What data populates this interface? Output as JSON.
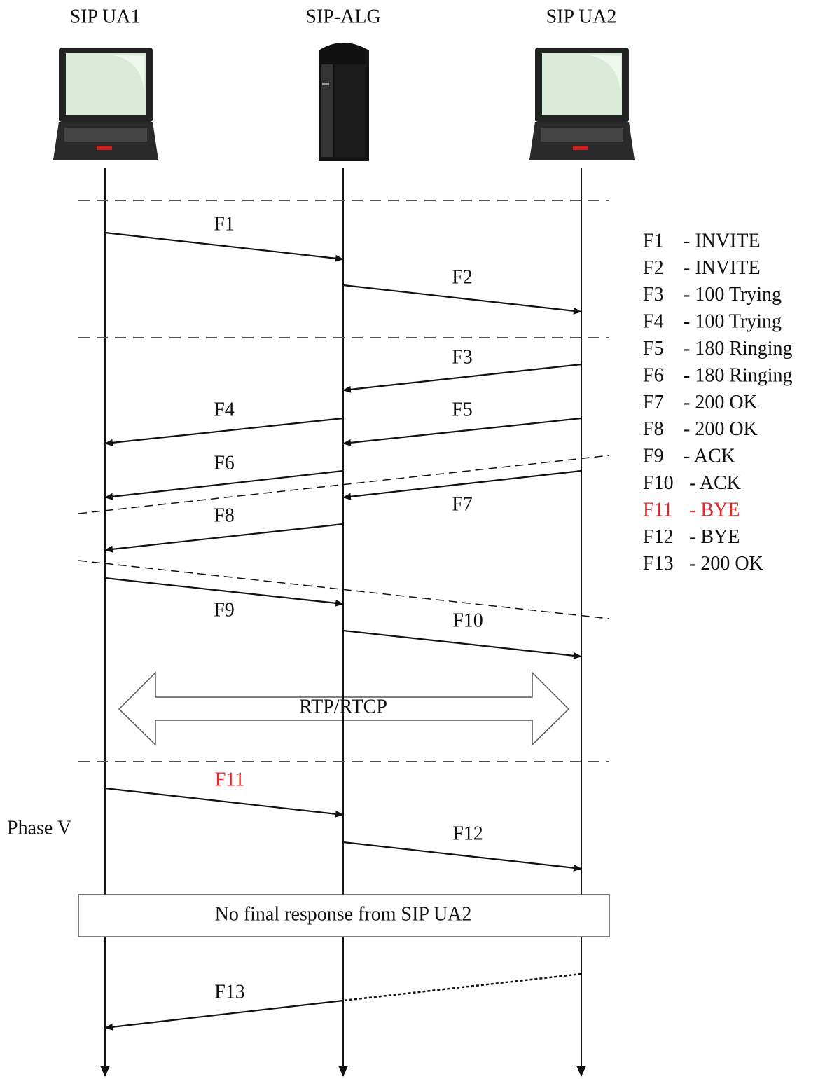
{
  "entities": [
    "SIP UA1",
    "SIP-ALG",
    "SIP UA2"
  ],
  "messages": [
    {
      "label": "F1"
    },
    {
      "label": "F2"
    },
    {
      "label": "F3"
    },
    {
      "label": "F4"
    },
    {
      "label": "F5"
    },
    {
      "label": "F6"
    },
    {
      "label": "F7"
    },
    {
      "label": "F8"
    },
    {
      "label": "F9"
    },
    {
      "label": "F10"
    },
    {
      "label": "F11"
    },
    {
      "label": "F12"
    },
    {
      "label": "F13"
    }
  ],
  "media": "RTP/RTCP",
  "phase_label": "Phase V",
  "note": "No final response from SIP UA2",
  "legend": [
    {
      "id": "F1",
      "desc": "- INVITE"
    },
    {
      "id": "F2",
      "desc": "- INVITE"
    },
    {
      "id": "F3",
      "desc": "- 100 Trying"
    },
    {
      "id": "F4",
      "desc": "- 100 Trying"
    },
    {
      "id": "F5",
      "desc": "- 180 Ringing"
    },
    {
      "id": "F6",
      "desc": "- 180 Ringing"
    },
    {
      "id": "F7",
      "desc": "- 200 OK"
    },
    {
      "id": "F8",
      "desc": "- 200 OK"
    },
    {
      "id": "F9",
      "desc": "- ACK"
    },
    {
      "id": "F10",
      "desc": "- ACK"
    },
    {
      "id": "F11",
      "desc": "- BYE"
    },
    {
      "id": "F12",
      "desc": "- BYE"
    },
    {
      "id": "F13",
      "desc": "- 200 OK"
    }
  ]
}
